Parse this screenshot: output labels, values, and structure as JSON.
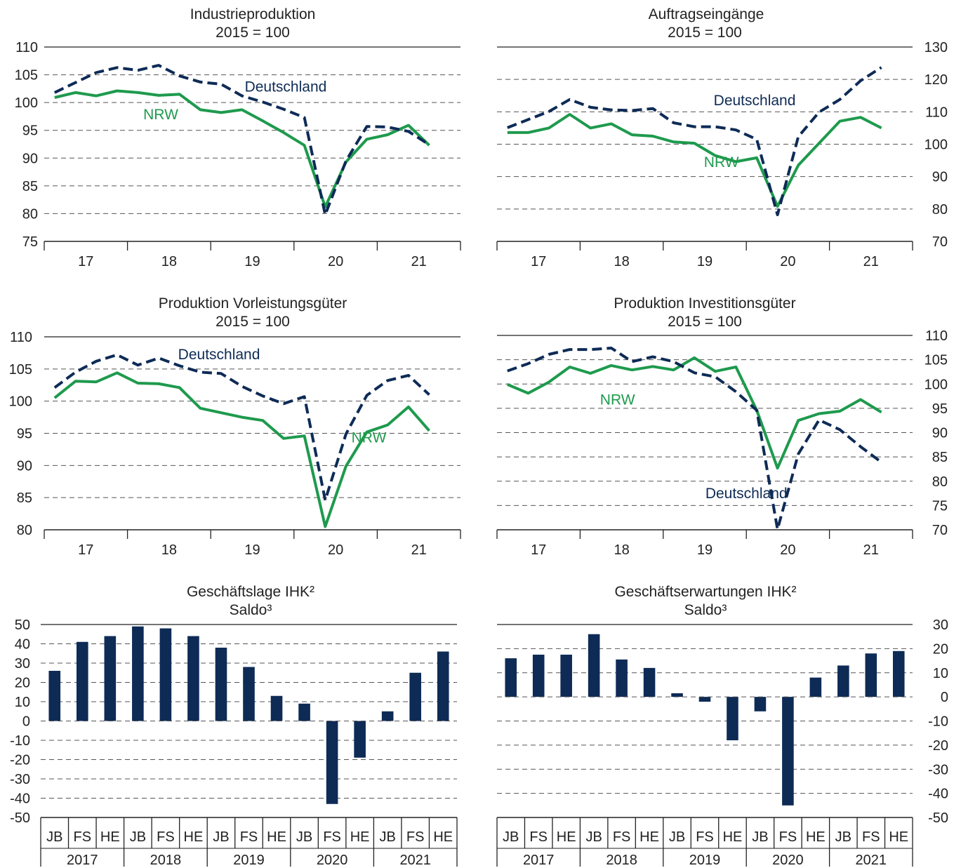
{
  "colors": {
    "deutschland": "#0e2b56",
    "nrw": "#1e9a4d",
    "bar": "#0e2b56",
    "grid": "#555555",
    "axis": "#222222"
  },
  "chart_data": [
    {
      "type": "line",
      "title": "Industrieproduktion",
      "subtitle": "2015 = 100",
      "year_labels": [
        "17",
        "18",
        "19",
        "20",
        "21"
      ],
      "y_ticks": [
        "110",
        "105",
        "100",
        "95",
        "90",
        "85",
        "80",
        "75"
      ],
      "ylim": [
        75,
        110
      ],
      "axis_side": "left",
      "series": [
        {
          "name": "Deutschland",
          "style": "dashed",
          "label_at": [
            2019.4,
            102
          ],
          "x": [
            2016.625,
            2016.875,
            2017.125,
            2017.375,
            2017.625,
            2017.875,
            2018.125,
            2018.375,
            2018.625,
            2018.875,
            2019.125,
            2019.375,
            2019.625,
            2019.875,
            2020.125,
            2020.375,
            2020.625,
            2020.875,
            2021.125
          ],
          "values": [
            101.8,
            103.6,
            105.4,
            106.3,
            105.8,
            106.7,
            104.8,
            103.7,
            103.3,
            101.2,
            100.1,
            98.8,
            97.3,
            79.8,
            89.5,
            95.7,
            95.6,
            94.8,
            92.4
          ]
        },
        {
          "name": "NRW",
          "style": "solid",
          "label_at": [
            2017.9,
            97
          ],
          "x": [
            2016.625,
            2016.875,
            2017.125,
            2017.375,
            2017.625,
            2017.875,
            2018.125,
            2018.375,
            2018.625,
            2018.875,
            2019.125,
            2019.375,
            2019.625,
            2019.875,
            2020.125,
            2020.375,
            2020.625,
            2020.875,
            2021.125
          ],
          "values": [
            100.9,
            101.8,
            101.2,
            102.1,
            101.8,
            101.3,
            101.5,
            98.7,
            98.2,
            98.7,
            96.7,
            94.6,
            92.3,
            81.2,
            89.3,
            93.4,
            94.2,
            95.9,
            92.3
          ]
        }
      ]
    },
    {
      "type": "line",
      "title": "Auftragseingänge",
      "subtitle": "2015 = 100",
      "year_labels": [
        "17",
        "18",
        "19",
        "20",
        "21"
      ],
      "y_ticks": [
        "130",
        "120",
        "110",
        "100",
        "90",
        "80",
        "70"
      ],
      "ylim": [
        70,
        130
      ],
      "axis_side": "right",
      "series": [
        {
          "name": "Deutschland",
          "style": "dashed",
          "label_at": [
            2019.6,
            112
          ],
          "x": [
            2016.625,
            2016.875,
            2017.125,
            2017.375,
            2017.625,
            2017.875,
            2018.125,
            2018.375,
            2018.625,
            2018.875,
            2019.125,
            2019.375,
            2019.625,
            2019.875,
            2020.125,
            2020.375,
            2020.625,
            2020.875,
            2021.125
          ],
          "values": [
            105.1,
            107.6,
            110.1,
            113.8,
            111.4,
            110.6,
            110.4,
            111.0,
            106.6,
            105.4,
            105.4,
            104.4,
            101.5,
            78.2,
            102.3,
            109.9,
            113.8,
            119.6,
            123.7
          ]
        },
        {
          "name": "NRW",
          "style": "solid",
          "label_at": [
            2019.2,
            93
          ],
          "x": [
            2016.625,
            2016.875,
            2017.125,
            2017.375,
            2017.625,
            2017.875,
            2018.125,
            2018.375,
            2018.625,
            2018.875,
            2019.125,
            2019.375,
            2019.625,
            2019.875,
            2020.125,
            2020.375,
            2020.625,
            2020.875,
            2021.125
          ],
          "values": [
            103.6,
            103.6,
            105.0,
            109.2,
            105.0,
            106.3,
            102.9,
            102.5,
            100.7,
            100.3,
            96.5,
            94.6,
            95.8,
            80.8,
            93.5,
            100.3,
            107.1,
            108.3,
            105.0
          ]
        }
      ]
    },
    {
      "type": "line",
      "title": "Produktion Vorleistungsgüter",
      "subtitle": "2015 = 100",
      "year_labels": [
        "17",
        "18",
        "19",
        "20",
        "21"
      ],
      "y_ticks": [
        "110",
        "105",
        "100",
        "95",
        "90",
        "85",
        "80"
      ],
      "ylim": [
        80,
        110
      ],
      "axis_side": "left",
      "series": [
        {
          "name": "Deutschland",
          "style": "dashed",
          "label_at": [
            2018.6,
            106.5
          ],
          "x": [
            2016.625,
            2016.875,
            2017.125,
            2017.375,
            2017.625,
            2017.875,
            2018.125,
            2018.375,
            2018.625,
            2018.875,
            2019.125,
            2019.375,
            2019.625,
            2019.875,
            2020.125,
            2020.375,
            2020.625,
            2020.875,
            2021.125
          ],
          "values": [
            102.1,
            104.5,
            106.2,
            107.2,
            105.6,
            106.7,
            105.5,
            104.5,
            104.3,
            102.3,
            100.8,
            99.6,
            100.7,
            84.6,
            94.9,
            100.9,
            103.2,
            104.0,
            101.0
          ]
        },
        {
          "name": "NRW",
          "style": "solid",
          "label_at": [
            2020.4,
            93.6
          ],
          "x": [
            2016.625,
            2016.875,
            2017.125,
            2017.375,
            2017.625,
            2017.875,
            2018.125,
            2018.375,
            2018.625,
            2018.875,
            2019.125,
            2019.375,
            2019.625,
            2019.875,
            2020.125,
            2020.375,
            2020.625,
            2020.875,
            2021.125
          ],
          "values": [
            100.5,
            103.1,
            103.0,
            104.4,
            102.8,
            102.7,
            102.1,
            98.9,
            98.2,
            97.5,
            97.0,
            94.2,
            94.6,
            80.5,
            89.9,
            95.2,
            96.3,
            99.1,
            95.4
          ]
        }
      ]
    },
    {
      "type": "line",
      "title": "Produktion Investitionsgüter",
      "subtitle": "2015 = 100",
      "year_labels": [
        "17",
        "18",
        "19",
        "20",
        "21"
      ],
      "y_ticks": [
        "110",
        "105",
        "100",
        "95",
        "90",
        "85",
        "80",
        "75",
        "70"
      ],
      "ylim": [
        70,
        110
      ],
      "axis_side": "right",
      "series": [
        {
          "name": "Deutschland",
          "style": "dashed",
          "label_at": [
            2019.5,
            76.5
          ],
          "x": [
            2016.625,
            2016.875,
            2017.125,
            2017.375,
            2017.625,
            2017.875,
            2018.125,
            2018.375,
            2018.625,
            2018.875,
            2019.125,
            2019.375,
            2019.625,
            2019.875,
            2020.125,
            2020.375,
            2020.625,
            2020.875,
            2021.125
          ],
          "values": [
            102.7,
            104.2,
            106.1,
            107.1,
            107.1,
            107.4,
            104.6,
            105.6,
            104.6,
            102.3,
            101.5,
            98.4,
            94.6,
            70.1,
            85.6,
            92.6,
            90.6,
            87.1,
            83.9
          ]
        },
        {
          "name": "NRW",
          "style": "solid",
          "label_at": [
            2017.95,
            95.8
          ],
          "x": [
            2016.625,
            2016.875,
            2017.125,
            2017.375,
            2017.625,
            2017.875,
            2018.125,
            2018.375,
            2018.625,
            2018.875,
            2019.125,
            2019.375,
            2019.625,
            2019.875,
            2020.125,
            2020.375,
            2020.625,
            2020.875,
            2021.125
          ],
          "values": [
            99.9,
            98.1,
            100.4,
            103.5,
            102.2,
            103.8,
            102.9,
            103.6,
            102.9,
            105.4,
            102.6,
            103.5,
            94.6,
            82.7,
            92.5,
            93.9,
            94.4,
            96.8,
            94.2
          ]
        }
      ]
    },
    {
      "type": "bar",
      "title": "Geschäftslage IHK²",
      "subtitle": "Saldo³",
      "categories": [
        "JB",
        "FS",
        "HE",
        "JB",
        "FS",
        "HE",
        "JB",
        "FS",
        "HE",
        "JB",
        "FS",
        "HE",
        "JB",
        "FS",
        "HE"
      ],
      "years": [
        "2017",
        "2018",
        "2019",
        "2020",
        "2021"
      ],
      "values": [
        26,
        41,
        44,
        49,
        48,
        44,
        38,
        28,
        13,
        9,
        -43,
        -19,
        5,
        25,
        36
      ],
      "y_ticks": [
        "50",
        "40",
        "30",
        "20",
        "10",
        "0",
        "-10",
        "-20",
        "-30",
        "-40",
        "-50"
      ],
      "ylim": [
        -50,
        50
      ],
      "axis_side": "left"
    },
    {
      "type": "bar",
      "title": "Geschäftserwartungen IHK²",
      "subtitle": "Saldo³",
      "categories": [
        "JB",
        "FS",
        "HE",
        "JB",
        "FS",
        "HE",
        "JB",
        "FS",
        "HE",
        "JB",
        "FS",
        "HE",
        "JB",
        "FS",
        "HE"
      ],
      "years": [
        "2017",
        "2018",
        "2019",
        "2020",
        "2021"
      ],
      "values": [
        16,
        17.5,
        17.5,
        26,
        15.5,
        12,
        1.5,
        -2,
        -18,
        -6,
        -45,
        8,
        13,
        18,
        19
      ],
      "y_ticks": [
        "30",
        "20",
        "10",
        "0",
        "-10",
        "-20",
        "-30",
        "-40",
        "-50"
      ],
      "ylim": [
        -50,
        30
      ],
      "axis_side": "right"
    }
  ]
}
